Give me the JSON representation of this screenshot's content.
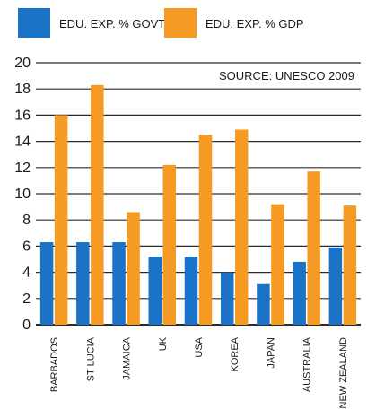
{
  "chart_data": {
    "type": "bar",
    "source": "SOURCE: UNESCO 2009",
    "categories": [
      "BARBADOS",
      "ST LUCIA",
      "JAMAICA",
      "UK",
      "USA",
      "KOREA",
      "JAPAN",
      "AUSTRALIA",
      "NEW ZEALAND"
    ],
    "series": [
      {
        "name": "EDU. EXP. % GDP",
        "color": "#1a73c6",
        "values": [
          6.3,
          6.3,
          6.3,
          5.2,
          5.2,
          4.0,
          3.1,
          4.8,
          5.9
        ]
      },
      {
        "name": "EDU. EXP. % GOVT. EXP.",
        "color": "#f59a23",
        "values": [
          16.0,
          18.3,
          8.6,
          12.2,
          14.5,
          14.9,
          9.2,
          11.7,
          9.1
        ]
      }
    ],
    "ylim": [
      0,
      20
    ],
    "yticks": [
      0,
      2,
      4,
      6,
      8,
      10,
      12,
      14,
      16,
      18,
      20
    ],
    "grid": true,
    "legend_position": "top"
  }
}
